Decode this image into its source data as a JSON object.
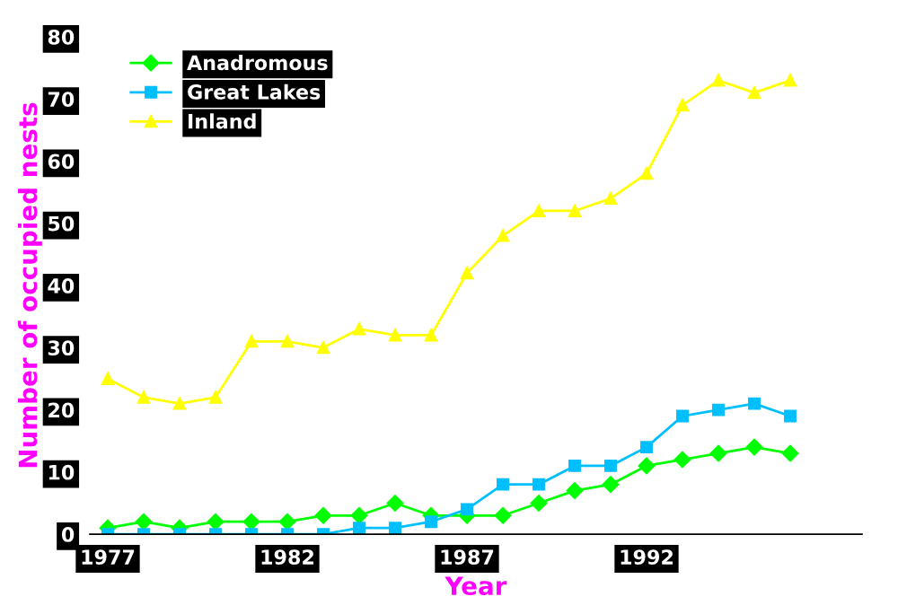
{
  "chart_data": {
    "type": "line",
    "xlabel": "Year",
    "ylabel": "Number of occupied nests",
    "x": [
      1977,
      1978,
      1979,
      1980,
      1981,
      1982,
      1983,
      1984,
      1985,
      1986,
      1987,
      1988,
      1989,
      1990,
      1991,
      1992,
      1993,
      1994,
      1995,
      1996
    ],
    "series": [
      {
        "name": "Anadromous",
        "color": "#00ff00",
        "marker": "diamond",
        "values": [
          1,
          2,
          1,
          2,
          2,
          2,
          3,
          3,
          5,
          3,
          3,
          3,
          5,
          7,
          8,
          11,
          12,
          13,
          14,
          13
        ]
      },
      {
        "name": "Great Lakes",
        "color": "#00bfff",
        "marker": "square",
        "values": [
          0,
          0,
          0,
          0,
          0,
          0,
          0,
          1,
          1,
          2,
          4,
          8,
          8,
          11,
          11,
          14,
          19,
          20,
          21,
          19
        ]
      },
      {
        "name": "Inland",
        "color": "#ffff00",
        "marker": "triangle",
        "values": [
          25,
          22,
          21,
          22,
          31,
          31,
          30,
          33,
          32,
          32,
          42,
          48,
          52,
          52,
          54,
          58,
          69,
          73,
          71,
          73
        ]
      }
    ],
    "xlim": [
      1976.5,
      1998
    ],
    "xticks": [
      1977,
      1982,
      1987,
      1992
    ],
    "ylim": [
      0,
      80
    ],
    "yticks": [
      0,
      10,
      20,
      30,
      40,
      50,
      60,
      70,
      80
    ],
    "grid": false,
    "legend": "top left"
  }
}
